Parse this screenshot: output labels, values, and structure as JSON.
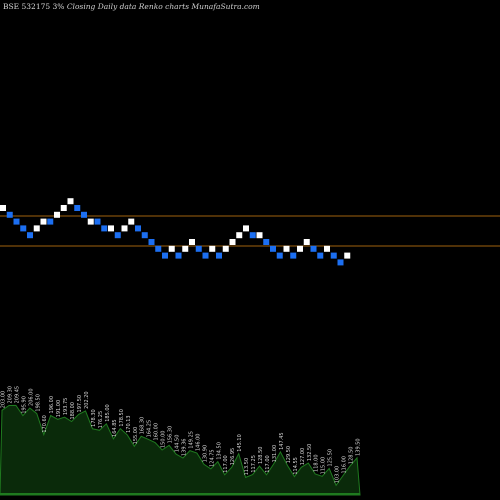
{
  "header": {
    "symbol": "BSE 532175 3%",
    "tail": "Closing Daily data  Renko  charts MunafaSutra.com"
  },
  "colors": {
    "background": "#000000",
    "up_brick": "#ffffff",
    "down_brick": "#1c6ff2",
    "level_line": "#a0620e",
    "volume_fill": "#0a2a0a",
    "volume_line": "#1f7a1f"
  },
  "chart_data": {
    "type": "renko",
    "title": "",
    "bricks": [
      {
        "dir": "up",
        "row": 0
      },
      {
        "dir": "down",
        "row": 1
      },
      {
        "dir": "down",
        "row": 2
      },
      {
        "dir": "down",
        "row": 3
      },
      {
        "dir": "down",
        "row": 4
      },
      {
        "dir": "up",
        "row": 3
      },
      {
        "dir": "up",
        "row": 2
      },
      {
        "dir": "down",
        "row": 2
      },
      {
        "dir": "up",
        "row": 1
      },
      {
        "dir": "up",
        "row": 0
      },
      {
        "dir": "up",
        "row": -1
      },
      {
        "dir": "down",
        "row": 0
      },
      {
        "dir": "down",
        "row": 1
      },
      {
        "dir": "up",
        "row": 2
      },
      {
        "dir": "down",
        "row": 2
      },
      {
        "dir": "down",
        "row": 3
      },
      {
        "dir": "up",
        "row": 3
      },
      {
        "dir": "down",
        "row": 4
      },
      {
        "dir": "up",
        "row": 3
      },
      {
        "dir": "up",
        "row": 2
      },
      {
        "dir": "down",
        "row": 3
      },
      {
        "dir": "down",
        "row": 4
      },
      {
        "dir": "down",
        "row": 5
      },
      {
        "dir": "down",
        "row": 6
      },
      {
        "dir": "down",
        "row": 7
      },
      {
        "dir": "up",
        "row": 6
      },
      {
        "dir": "down",
        "row": 7
      },
      {
        "dir": "up",
        "row": 6
      },
      {
        "dir": "up",
        "row": 5
      },
      {
        "dir": "down",
        "row": 6
      },
      {
        "dir": "down",
        "row": 7
      },
      {
        "dir": "up",
        "row": 6
      },
      {
        "dir": "down",
        "row": 7
      },
      {
        "dir": "up",
        "row": 6
      },
      {
        "dir": "up",
        "row": 5
      },
      {
        "dir": "up",
        "row": 4
      },
      {
        "dir": "up",
        "row": 3
      },
      {
        "dir": "down",
        "row": 4
      },
      {
        "dir": "up",
        "row": 4
      },
      {
        "dir": "down",
        "row": 5
      },
      {
        "dir": "down",
        "row": 6
      },
      {
        "dir": "down",
        "row": 7
      },
      {
        "dir": "up",
        "row": 6
      },
      {
        "dir": "down",
        "row": 7
      },
      {
        "dir": "up",
        "row": 6
      },
      {
        "dir": "up",
        "row": 5
      },
      {
        "dir": "down",
        "row": 6
      },
      {
        "dir": "down",
        "row": 7
      },
      {
        "dir": "up",
        "row": 6
      },
      {
        "dir": "down",
        "row": 7
      },
      {
        "dir": "down",
        "row": 8
      },
      {
        "dir": "up",
        "row": 7
      }
    ],
    "level_lines": [
      {
        "color": "#a0620e"
      },
      {
        "color": "#a0620e"
      }
    ],
    "volume_labels": [
      "203.00",
      "209.30",
      "209.45",
      "195.90",
      "206.00",
      "198.50",
      "170.60",
      "196.00",
      "191.00",
      "193.75",
      "188.00",
      "197.50",
      "202.20",
      "178.30",
      "176.25",
      "185.00",
      "164.85",
      "178.50",
      "170.13",
      "155.00",
      "168.30",
      "164.25",
      "160.00",
      "150.00",
      "156.30",
      "144.50",
      "139.36",
      "149.25",
      "146.00",
      "130.90",
      "124.75",
      "134.50",
      "117.00",
      "126.95",
      "145.10",
      "113.50",
      "117.25",
      "128.50",
      "117.00",
      "131.00",
      "147.45",
      "129.50",
      "114.55",
      "127.00",
      "132.50",
      "118.00",
      "115.00",
      "125.50",
      "103.00",
      "116.00",
      "128.50",
      "139.50"
    ]
  }
}
